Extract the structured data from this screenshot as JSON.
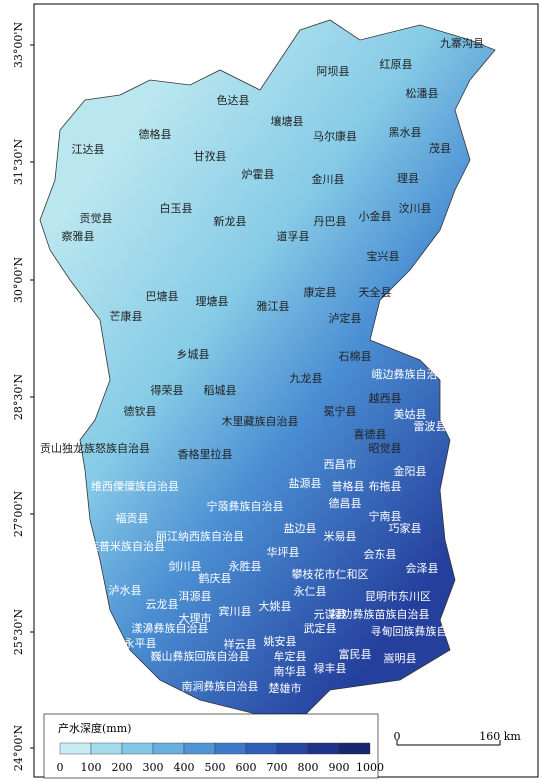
{
  "map": {
    "lat_labels": [
      "33°00'N",
      "31°30'N",
      "30°00'N",
      "28°30'N",
      "27°00'N",
      "25°30'N",
      "24°00'N"
    ],
    "labels": [
      "九寨沟县",
      "阿坝县",
      "红原县",
      "松潘县",
      "色达县",
      "德格县",
      "壤塘县",
      "马尔康县",
      "黑水县",
      "茂县",
      "江达县",
      "甘孜县",
      "炉霍县",
      "金川县",
      "理县",
      "白玉县",
      "新龙县",
      "丹巴县",
      "小金县",
      "汶川县",
      "贡觉县",
      "道孚县",
      "察雅县",
      "宝兴县",
      "巴塘县",
      "理塘县",
      "康定县",
      "天全县",
      "芒康县",
      "雅江县",
      "泸定县",
      "乡城县",
      "九龙县",
      "石棉县",
      "峨边彝族自治县",
      "得荣县",
      "稻城县",
      "越西县",
      "冕宁县",
      "德钦县",
      "木里藏族自治县",
      "美姑县",
      "雷波县",
      "喜德县",
      "昭觉县",
      "贡山独龙族怒族自治县",
      "香格里拉县",
      "西昌市",
      "金阳县",
      "盐源县",
      "普格县",
      "布拖县",
      "维西傈僳族自治县",
      "德昌县",
      "宁南县",
      "宁蒗彝族自治县",
      "福贡县",
      "巧家县",
      "盐边县",
      "米易县",
      "丽江纳西族自治县",
      "兰坪白族普米族自治县",
      "华坪县",
      "会东县",
      "剑川县",
      "永胜县",
      "攀枝花市仁和区",
      "会泽县",
      "鹤庆县",
      "云龙县",
      "泸水县",
      "洱源县",
      "宾川县",
      "大姚县",
      "永仁县",
      "昆明市东川区",
      "元谋县",
      "禄劝彝族苗族自治县",
      "大理市",
      "武定县",
      "寻甸回族彝族自治县",
      "漾濞彝族自治县",
      "姚安县",
      "永平县",
      "祥云县",
      "牟定县",
      "富民县",
      "嵩明县",
      "巍山彝族回族自治县",
      "南华县",
      "禄丰县",
      "南涧彝族自治县",
      "楚雄市"
    ],
    "legend": {
      "title": "产水深度(mm)",
      "ticks": [
        0,
        100,
        200,
        300,
        400,
        500,
        600,
        700,
        800,
        900,
        1000
      ],
      "colors": [
        "#c7ecf2",
        "#a5dced",
        "#84c8e8",
        "#67b0e0",
        "#4f95d6",
        "#3d7ac9",
        "#2f5fb8",
        "#2647a3",
        "#1f338a",
        "#1a2570"
      ]
    },
    "scale_bar": {
      "start": "0",
      "end": "160 km"
    }
  }
}
